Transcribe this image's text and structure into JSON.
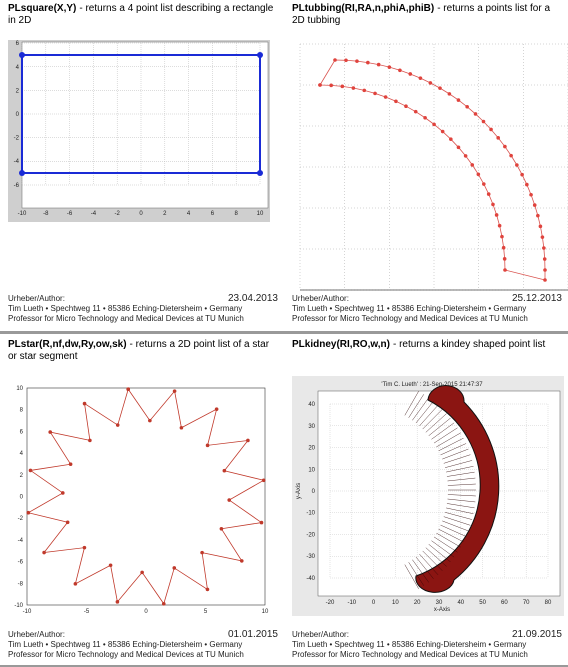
{
  "panels": [
    {
      "title_code": "PLsquare(X,Y)",
      "title_desc": "- returns a 4 point list describing a rectangle in 2D",
      "plot": {
        "xticks": [
          -10,
          -8,
          -6,
          -4,
          -2,
          0,
          2,
          4,
          6,
          8,
          10
        ],
        "yticks": [
          6,
          4,
          2,
          0,
          -2,
          -4,
          -6
        ]
      },
      "author_label": "Urheber/Author:",
      "date": "23.04.2013",
      "author_lines": [
        "Tim Lueth • Spechtweg 11 • 85386 Eching-Dietersheim • Germany",
        "Professor for Micro Technology and Medical Devices at TU Munich"
      ]
    },
    {
      "title_code": "PLtubbing(RI,RA,n,phiA,phiB)",
      "title_desc": "- returns a points list for a 2D tubbing",
      "author_label": "Urheber/Author:",
      "date": "25.12.2013",
      "author_lines": [
        "Tim Lueth • Spechtweg 11 • 85386 Eching-Dietersheim • Germany",
        "Professor for Micro Technology and Medical Devices at TU Munich"
      ]
    },
    {
      "title_code": "PLstar(R,nf,dw,Ry,ow,sk)",
      "title_desc": "- returns a 2D point list of a star or star segment",
      "plot": {
        "xticks": [
          -10,
          -5,
          0,
          5,
          10
        ],
        "yticks": [
          10,
          8,
          6,
          4,
          2,
          0,
          -2,
          -4,
          -6,
          -8,
          -10
        ]
      },
      "author_label": "Urheber/Author:",
      "date": "01.01.2015",
      "author_lines": [
        "Tim Lueth • Spechtweg 11 • 85386 Eching-Dietersheim • Germany",
        "Professor for Micro Technology and Medical Devices at TU Munich"
      ]
    },
    {
      "title_code": "PLkidney(RI,RO,w,n)",
      "title_desc": "- returns a kindey shaped point list",
      "plot": {
        "title": "'Tim C. Lueth' : 21-Sep-2015 21:47:37",
        "xlabel": "x-Axis",
        "ylabel": "y-Axis",
        "xticks": [
          -20,
          -10,
          0,
          10,
          20,
          30,
          40,
          50,
          60,
          70,
          80
        ],
        "yticks": [
          40,
          30,
          20,
          10,
          0,
          -10,
          -20,
          -30,
          -40
        ]
      },
      "author_label": "Urheber/Author:",
      "date": "21.09.2015",
      "author_lines": [
        "Tim Lueth • Spechtweg 11 • 85386 Eching-Dietersheim • Germany",
        "Professor for Micro Technology and Medical Devices at TU Munich"
      ]
    }
  ]
}
